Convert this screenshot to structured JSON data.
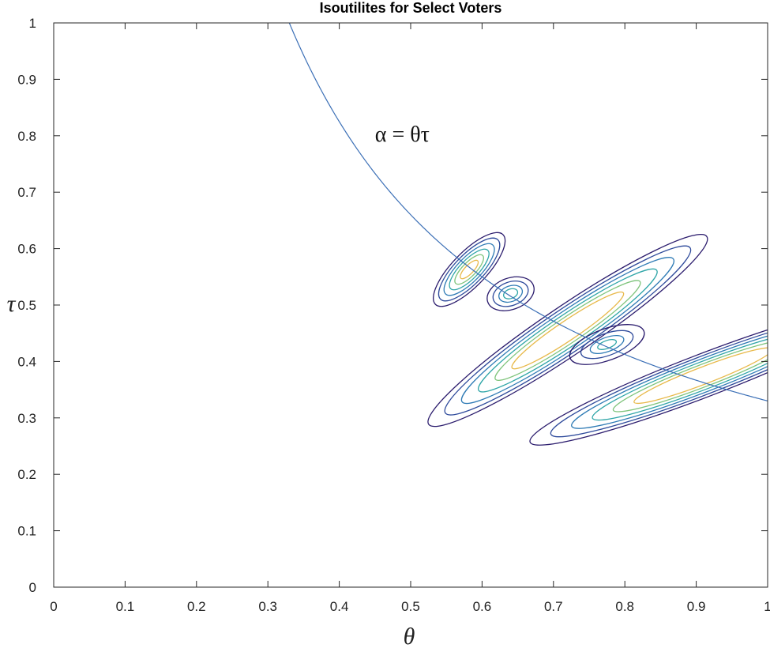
{
  "chart_data": {
    "type": "line",
    "title": "Isoutilites for Select Voters",
    "xlabel": "θ",
    "ylabel": "τ",
    "xlim": [
      0,
      1
    ],
    "ylim": [
      0,
      1
    ],
    "x_ticks": [
      "0",
      "0.1",
      "0.2",
      "0.3",
      "0.4",
      "0.5",
      "0.6",
      "0.7",
      "0.8",
      "0.9",
      "1"
    ],
    "y_ticks": [
      "0",
      "0.1",
      "0.2",
      "0.3",
      "0.4",
      "0.5",
      "0.6",
      "0.7",
      "0.8",
      "0.9",
      "1"
    ],
    "grid": false,
    "annotation": {
      "text": "α = θτ",
      "x": 0.45,
      "y": 0.79
    },
    "series": [
      {
        "type": "curve",
        "equation": "tau = alpha / theta",
        "alpha": 0.33,
        "x_range": [
          0.33,
          1
        ],
        "color": "#3b6fb6"
      }
    ],
    "contour_colors": [
      "#2b1c6d",
      "#2e4a9b",
      "#2f7bb5",
      "#30a6a8",
      "#7fc47c",
      "#e8b94a"
    ],
    "contour_groups": [
      {
        "center": [
          0.582,
          0.563
        ],
        "semi_axes": [
          0.068,
          0.024
        ],
        "angle_deg": -46,
        "levels": [
          1,
          0.85,
          0.7,
          0.55,
          0.4,
          0.25
        ]
      },
      {
        "center": [
          0.64,
          0.52
        ],
        "semi_axes": [
          0.034,
          0.022
        ],
        "angle_deg": -20,
        "levels": [
          1,
          0.75,
          0.5,
          0.3
        ]
      },
      {
        "center": [
          0.72,
          0.455
        ],
        "semi_axes": [
          0.235,
          0.034
        ],
        "angle_deg": -34,
        "levels": [
          1,
          0.88,
          0.76,
          0.64,
          0.52,
          0.4
        ]
      },
      {
        "center": [
          0.775,
          0.43
        ],
        "semi_axes": [
          0.055,
          0.022
        ],
        "angle_deg": -20,
        "levels": [
          1,
          0.7,
          0.45,
          0.25
        ]
      },
      {
        "center": [
          0.91,
          0.375
        ],
        "semi_axes": [
          0.26,
          0.03
        ],
        "angle_deg": -21,
        "levels": [
          1,
          0.88,
          0.76,
          0.64,
          0.52,
          0.4
        ]
      }
    ]
  }
}
